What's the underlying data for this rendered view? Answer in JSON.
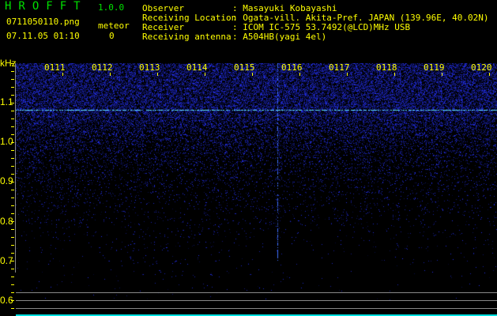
{
  "app": {
    "title": "HROFFT",
    "version": "1.0.0"
  },
  "file": {
    "name": "0711050110.png",
    "datetime": "07.11.05 01:10"
  },
  "meteor": {
    "label": "meteor",
    "count": "0"
  },
  "info": [
    {
      "label": "Observer",
      "value": ": Masayuki Kobayashi"
    },
    {
      "label": "Receiving Location",
      "value": ": Ogata-vill. Akita-Pref. JAPAN (139.96E, 40.02N)"
    },
    {
      "label": "Receiver",
      "value": ": ICOM IC-575 53.7492(@LCD)MHz USB"
    },
    {
      "label": "Receiving antenna",
      "value": ": A504HB(yagi 4el)"
    }
  ],
  "axis": {
    "y_unit": "kHz",
    "y_labels": [
      "1.1",
      "1.0",
      "0.9",
      "0.8",
      "0.7",
      "0.6"
    ],
    "x_labels": [
      "0111",
      "0112",
      "0113",
      "0114",
      "0115",
      "0116",
      "0117",
      "0118",
      "0119",
      "0120"
    ]
  },
  "colors": {
    "text": "#ffff00",
    "title": "#00e000",
    "noise": "#2030ff",
    "signal": "#60e0ff"
  }
}
